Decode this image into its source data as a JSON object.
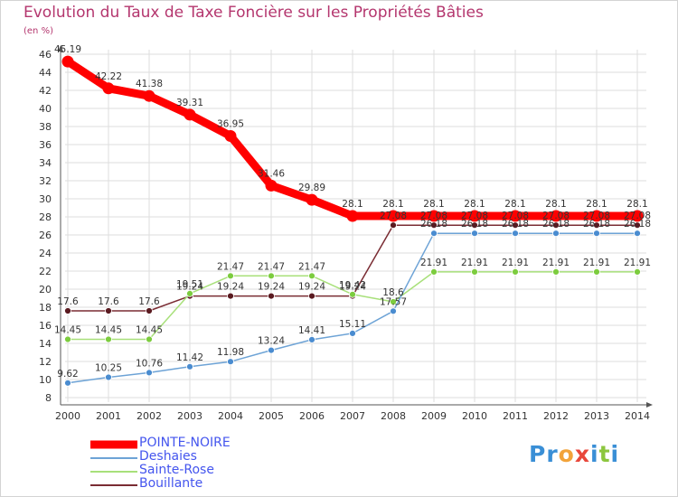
{
  "title": "Evolution du Taux de Taxe Foncière sur les Propriétés Bâties",
  "unit": "(en %)",
  "logo": {
    "text": "Proxiti",
    "letters": [
      {
        "ch": "P",
        "color": "#3a8fd6"
      },
      {
        "ch": "r",
        "color": "#3a8fd6"
      },
      {
        "ch": "o",
        "color": "#f2a33a"
      },
      {
        "ch": "x",
        "color": "#e8473b"
      },
      {
        "ch": "i",
        "color": "#3a8fd6"
      },
      {
        "ch": "t",
        "color": "#8cc63e"
      },
      {
        "ch": "i",
        "color": "#3a8fd6"
      }
    ]
  },
  "chart_data": {
    "type": "line",
    "title": "Evolution du Taux de Taxe Foncière sur les Propriétés Bâties",
    "ylabel": "(en %)",
    "xlabel": "",
    "ylim": [
      8,
      46
    ],
    "y_ticks": [
      8,
      10,
      12,
      14,
      16,
      18,
      20,
      22,
      24,
      26,
      28,
      30,
      32,
      34,
      36,
      38,
      40,
      42,
      44,
      46
    ],
    "grid": true,
    "legend_position": "bottom-left",
    "x": [
      "2000",
      "2001",
      "2002",
      "2003",
      "2004",
      "2005",
      "2006",
      "2007",
      "2008",
      "2009",
      "2010",
      "2011",
      "2012",
      "2013",
      "2014"
    ],
    "series": [
      {
        "name": "Bouillante",
        "color": "#7a2c33",
        "marker": "#5a1a20",
        "values": [
          17.6,
          17.6,
          17.6,
          19.24,
          19.24,
          19.24,
          19.24,
          19.24,
          27.08,
          27.08,
          27.08,
          27.08,
          27.08,
          27.08,
          27.08
        ],
        "labels": [
          "17.6",
          "17.6",
          "17.6",
          "19.24",
          "19.24",
          "19.24",
          "19.24",
          "19.24",
          "27.08",
          "27.08",
          "27.08",
          "27.08",
          "27.08",
          "27.08",
          "27.08"
        ]
      },
      {
        "name": "Sainte-Rose",
        "color": "#a8e07a",
        "marker": "#7ccc3e",
        "values": [
          14.45,
          14.45,
          14.45,
          19.51,
          21.47,
          21.47,
          21.47,
          19.42,
          18.6,
          21.91,
          21.91,
          21.91,
          21.91,
          21.91,
          21.91
        ],
        "labels": [
          "14.45",
          "14.45",
          "14.45",
          "19.51",
          "21.47",
          "21.47",
          "21.47",
          "19.42",
          "18.6",
          "21.91",
          "21.91",
          "21.91",
          "21.91",
          "21.91",
          "21.91"
        ]
      },
      {
        "name": "Deshaies",
        "color": "#6da3d6",
        "marker": "#4a8cd0",
        "values": [
          9.62,
          10.25,
          10.76,
          11.42,
          11.98,
          13.24,
          14.41,
          15.11,
          17.57,
          26.18,
          26.18,
          26.18,
          26.18,
          26.18,
          26.18
        ],
        "labels": [
          "9.62",
          "10.25",
          "10.76",
          "11.42",
          "11.98",
          "13.24",
          "14.41",
          "15.11",
          "17.57",
          "26.18",
          "26.18",
          "26.18",
          "26.18",
          "26.18",
          "26.18"
        ]
      },
      {
        "name": "POINTE-NOIRE",
        "color": "#ff0000",
        "marker": "#ff0000",
        "values": [
          45.19,
          42.22,
          41.38,
          39.31,
          36.95,
          31.46,
          29.89,
          28.1,
          28.1,
          28.1,
          28.1,
          28.1,
          28.1,
          28.1,
          28.1
        ],
        "labels": [
          "45.19",
          "42.22",
          "41.38",
          "39.31",
          "36.95",
          "31.46",
          "29.89",
          "28.1",
          "28.1",
          "28.1",
          "28.1",
          "28.1",
          "28.1",
          "28.1",
          "28.1"
        ]
      }
    ]
  },
  "legend": [
    {
      "name": "POINTE-NOIRE",
      "color": "#ff0000",
      "text_color": "#4455ee"
    },
    {
      "name": "Deshaies",
      "color": "#6da3d6",
      "text_color": "#4455ee"
    },
    {
      "name": "Sainte-Rose",
      "color": "#a8e07a",
      "text_color": "#4455ee"
    },
    {
      "name": "Bouillante",
      "color": "#7a2c33",
      "text_color": "#4455ee"
    }
  ]
}
